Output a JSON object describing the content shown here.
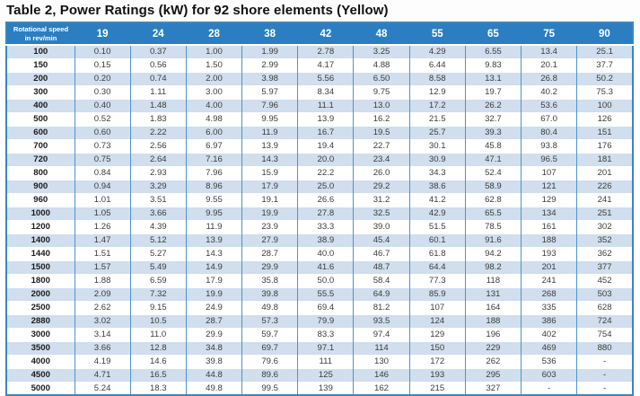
{
  "title": "Table 2, Power Ratings (kW) for 92 shore elements (Yellow)",
  "table": {
    "speed_header": {
      "line1": "Rotational speed",
      "line2": "in rev/min"
    },
    "columns": [
      "19",
      "24",
      "28",
      "38",
      "42",
      "48",
      "55",
      "65",
      "75",
      "90"
    ],
    "rows": [
      {
        "speed": "100",
        "values": [
          "0.10",
          "0.37",
          "1.00",
          "1.99",
          "2.78",
          "3.25",
          "4.29",
          "6.55",
          "13.4",
          "25.1"
        ]
      },
      {
        "speed": "150",
        "values": [
          "0.15",
          "0.56",
          "1.50",
          "2.99",
          "4.17",
          "4.88",
          "6.44",
          "9.83",
          "20.1",
          "37.7"
        ]
      },
      {
        "speed": "200",
        "values": [
          "0.20",
          "0.74",
          "2.00",
          "3.98",
          "5.56",
          "6.50",
          "8.58",
          "13.1",
          "26.8",
          "50.2"
        ]
      },
      {
        "speed": "300",
        "values": [
          "0.30",
          "1.11",
          "3.00",
          "5.97",
          "8.34",
          "9.75",
          "12.9",
          "19.7",
          "40.2",
          "75.3"
        ]
      },
      {
        "speed": "400",
        "values": [
          "0.40",
          "1.48",
          "4.00",
          "7.96",
          "11.1",
          "13.0",
          "17.2",
          "26.2",
          "53.6",
          "100"
        ]
      },
      {
        "speed": "500",
        "values": [
          "0.52",
          "1.83",
          "4.98",
          "9.95",
          "13.9",
          "16.2",
          "21.5",
          "32.7",
          "67.0",
          "126"
        ]
      },
      {
        "speed": "600",
        "values": [
          "0.60",
          "2.22",
          "6.00",
          "11.9",
          "16.7",
          "19.5",
          "25.7",
          "39.3",
          "80.4",
          "151"
        ]
      },
      {
        "speed": "700",
        "values": [
          "0.73",
          "2.56",
          "6.97",
          "13.9",
          "19.4",
          "22.7",
          "30.1",
          "45.8",
          "93.8",
          "176"
        ]
      },
      {
        "speed": "720",
        "values": [
          "0.75",
          "2.64",
          "7.16",
          "14.3",
          "20.0",
          "23.4",
          "30.9",
          "47.1",
          "96.5",
          "181"
        ]
      },
      {
        "speed": "800",
        "values": [
          "0.84",
          "2.93",
          "7.96",
          "15.9",
          "22.2",
          "26.0",
          "34.3",
          "52.4",
          "107",
          "201"
        ]
      },
      {
        "speed": "900",
        "values": [
          "0.94",
          "3.29",
          "8.96",
          "17.9",
          "25.0",
          "29.2",
          "38.6",
          "58.9",
          "121",
          "226"
        ]
      },
      {
        "speed": "960",
        "values": [
          "1.01",
          "3.51",
          "9.55",
          "19.1",
          "26.6",
          "31.2",
          "41.2",
          "62.8",
          "129",
          "241"
        ]
      },
      {
        "speed": "1000",
        "values": [
          "1.05",
          "3.66",
          "9.95",
          "19.9",
          "27.8",
          "32.5",
          "42.9",
          "65.5",
          "134",
          "251"
        ]
      },
      {
        "speed": "1200",
        "values": [
          "1.26",
          "4.39",
          "11.9",
          "23.9",
          "33.3",
          "39.0",
          "51.5",
          "78.5",
          "161",
          "302"
        ]
      },
      {
        "speed": "1400",
        "values": [
          "1.47",
          "5.12",
          "13.9",
          "27.9",
          "38.9",
          "45.4",
          "60.1",
          "91.6",
          "188",
          "352"
        ]
      },
      {
        "speed": "1440",
        "values": [
          "1.51",
          "5.27",
          "14.3",
          "28.7",
          "40.0",
          "46.7",
          "61.8",
          "94.2",
          "193",
          "362"
        ]
      },
      {
        "speed": "1500",
        "values": [
          "1.57",
          "5.49",
          "14.9",
          "29.9",
          "41.6",
          "48.7",
          "64.4",
          "98.2",
          "201",
          "377"
        ]
      },
      {
        "speed": "1800",
        "values": [
          "1.88",
          "6.59",
          "17.9",
          "35.8",
          "50.0",
          "58.4",
          "77.3",
          "118",
          "241",
          "452"
        ]
      },
      {
        "speed": "2000",
        "values": [
          "2.09",
          "7.32",
          "19.9",
          "39.8",
          "55.5",
          "64.9",
          "85.9",
          "131",
          "268",
          "503"
        ]
      },
      {
        "speed": "2500",
        "values": [
          "2.62",
          "9.15",
          "24.9",
          "49.8",
          "69.4",
          "81.2",
          "107",
          "164",
          "335",
          "628"
        ]
      },
      {
        "speed": "2880",
        "values": [
          "3.02",
          "10.5",
          "28.7",
          "57.3",
          "79.9",
          "93.5",
          "124",
          "188",
          "386",
          "724"
        ]
      },
      {
        "speed": "3000",
        "values": [
          "3.14",
          "11.0",
          "29.9",
          "59.7",
          "83.3",
          "97.4",
          "129",
          "196",
          "402",
          "754"
        ]
      },
      {
        "speed": "3500",
        "values": [
          "3.66",
          "12.8",
          "34.8",
          "69.7",
          "97.1",
          "114",
          "150",
          "229",
          "469",
          "880"
        ]
      },
      {
        "speed": "4000",
        "values": [
          "4.19",
          "14.6",
          "39.8",
          "79.6",
          "111",
          "130",
          "172",
          "262",
          "536",
          "-"
        ]
      },
      {
        "speed": "4500",
        "values": [
          "4.71",
          "16.5",
          "44.8",
          "89.6",
          "125",
          "146",
          "193",
          "295",
          "603",
          "-"
        ]
      },
      {
        "speed": "5000",
        "values": [
          "5.24",
          "18.3",
          "49.8",
          "99.5",
          "139",
          "162",
          "215",
          "327",
          "-",
          "-"
        ]
      }
    ]
  },
  "colors": {
    "header_bg": "#2b7ec1",
    "alt_row_bg": "#d0deed",
    "grid_border": "#4d94cb",
    "outer_border": "#3a86c0",
    "title_text": "#101010"
  }
}
